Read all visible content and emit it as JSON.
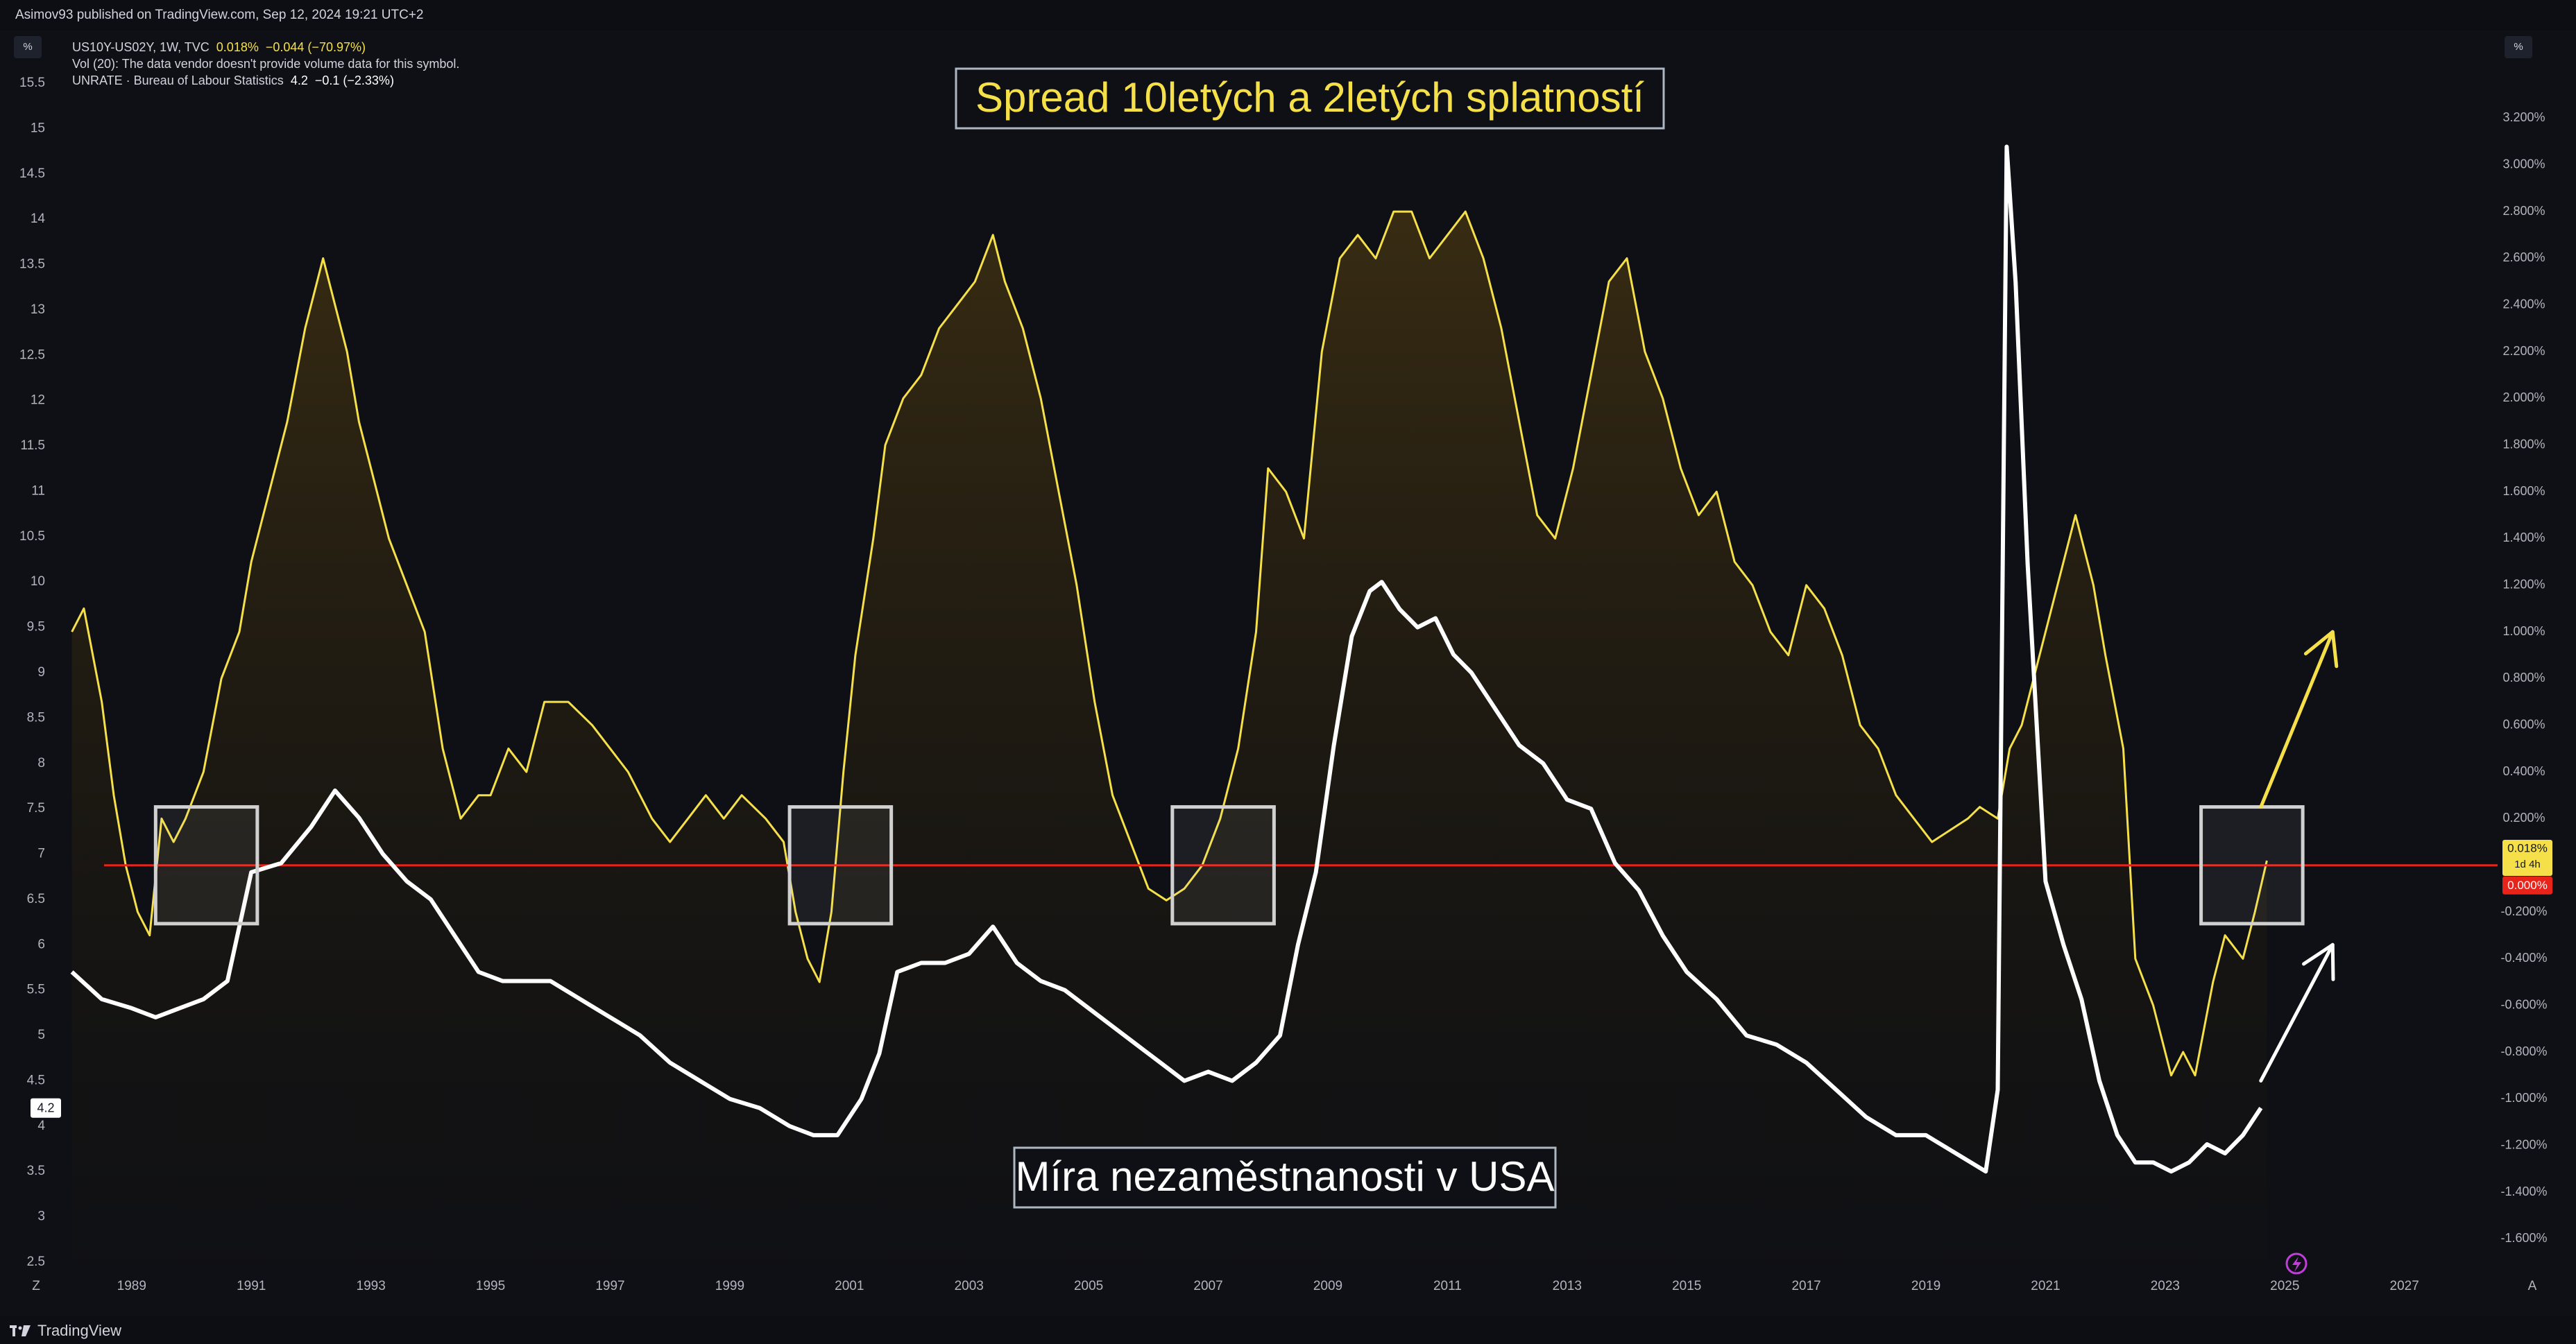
{
  "header": {
    "published": "Asimov93 published on TradingView.com, Sep 12, 2024 19:21 UTC+2",
    "left_unit": "%",
    "right_unit": "%"
  },
  "legend": {
    "line1_symbol": "US10Y-US02Y, 1W, TVC",
    "line1_value": "0.018%",
    "line1_change": "−0.044 (−70.97%)",
    "line2": "Vol (20): The data vendor doesn't provide volume data for this symbol.",
    "line3_symbol": "UNRATE · Bureau of Labour Statistics",
    "line3_value": "4.2",
    "line3_change": "−0.1 (−2.33%)"
  },
  "brand": {
    "name": "TradingView"
  },
  "annotations": {
    "spread_title": "Spread 10letých a 2letých splatností",
    "unrate_title": "Míra nezaměstnanosti v USA"
  },
  "price_labels": {
    "spread_last": "0.018%",
    "spread_timer": "1d 4h",
    "zero_line": "0.000%",
    "unrate_last": "4.2"
  },
  "axis_corner_left": "Z",
  "axis_corner_right": "A",
  "colors": {
    "spread": "#f5e04a",
    "unrate": "#ffffff",
    "zero_line": "#e8231a",
    "box": "#d0d0d0",
    "background": "#0e1016"
  },
  "chart_data": {
    "type": "line",
    "left_axis": {
      "label": "%",
      "range": [
        2.5,
        15.5
      ],
      "ticks": [
        "2.5",
        "3",
        "3.5",
        "4",
        "4.5",
        "5",
        "5.5",
        "6",
        "6.5",
        "7",
        "7.5",
        "8",
        "8.5",
        "9",
        "9.5",
        "10",
        "10.5",
        "11",
        "11.5",
        "12",
        "12.5",
        "13",
        "13.5",
        "14",
        "14.5",
        "15",
        "15.5"
      ]
    },
    "right_axis": {
      "label": "%",
      "range": [
        -1.7,
        3.35
      ],
      "ticks": [
        "-1.600%",
        "-1.400%",
        "-1.200%",
        "-1.000%",
        "-0.800%",
        "-0.600%",
        "-0.400%",
        "-0.200%",
        "0.000%",
        "0.200%",
        "0.400%",
        "0.600%",
        "0.800%",
        "1.000%",
        "1.200%",
        "1.400%",
        "1.600%",
        "1.800%",
        "2.000%",
        "2.200%",
        "2.400%",
        "2.600%",
        "2.800%",
        "3.000%",
        "3.200%"
      ]
    },
    "x_axis": {
      "range": [
        1987.9,
        2028.5
      ],
      "ticks": [
        "1989",
        "1991",
        "1993",
        "1995",
        "1997",
        "1999",
        "2001",
        "2003",
        "2005",
        "2007",
        "2009",
        "2011",
        "2013",
        "2015",
        "2017",
        "2019",
        "2021",
        "2023",
        "2025",
        "2027"
      ]
    },
    "grid": false,
    "series": [
      {
        "name": "US10Y-US02Y",
        "axis": "right",
        "style": "line-with-area",
        "x": [
          1988.0,
          1988.2,
          1988.5,
          1988.7,
          1988.9,
          1989.1,
          1989.3,
          1989.5,
          1989.7,
          1989.9,
          1990.2,
          1990.5,
          1990.8,
          1991.0,
          1991.3,
          1991.6,
          1991.9,
          1992.2,
          1992.4,
          1992.6,
          1992.8,
          1993.0,
          1993.3,
          1993.6,
          1993.9,
          1994.2,
          1994.5,
          1994.8,
          1995.0,
          1995.3,
          1995.6,
          1995.9,
          1996.3,
          1996.7,
          1997.0,
          1997.3,
          1997.7,
          1998.0,
          1998.3,
          1998.6,
          1998.9,
          1999.2,
          1999.6,
          1999.9,
          2000.1,
          2000.3,
          2000.5,
          2000.7,
          2000.9,
          2001.1,
          2001.4,
          2001.6,
          2001.9,
          2002.2,
          2002.5,
          2002.8,
          2003.1,
          2003.4,
          2003.6,
          2003.9,
          2004.2,
          2004.5,
          2004.8,
          2005.1,
          2005.4,
          2005.7,
          2006.0,
          2006.3,
          2006.6,
          2006.9,
          2007.2,
          2007.5,
          2007.8,
          2008.0,
          2008.3,
          2008.6,
          2008.9,
          2009.2,
          2009.5,
          2009.8,
          2010.1,
          2010.4,
          2010.7,
          2011.0,
          2011.3,
          2011.6,
          2011.9,
          2012.2,
          2012.5,
          2012.8,
          2013.1,
          2013.4,
          2013.7,
          2014.0,
          2014.3,
          2014.6,
          2014.9,
          2015.2,
          2015.5,
          2015.8,
          2016.1,
          2016.4,
          2016.7,
          2017.0,
          2017.3,
          2017.6,
          2017.9,
          2018.2,
          2018.5,
          2018.8,
          2019.1,
          2019.4,
          2019.7,
          2019.9,
          2020.2,
          2020.4,
          2020.6,
          2020.9,
          2021.2,
          2021.5,
          2021.8,
          2022.0,
          2022.3,
          2022.5,
          2022.8,
          2023.1,
          2023.3,
          2023.5,
          2023.8,
          2024.0,
          2024.3,
          2024.5,
          2024.7
        ],
        "y": [
          1.0,
          1.1,
          0.7,
          0.3,
          0.0,
          -0.2,
          -0.3,
          0.2,
          0.1,
          0.2,
          0.4,
          0.8,
          1.0,
          1.3,
          1.6,
          1.9,
          2.3,
          2.6,
          2.4,
          2.2,
          1.9,
          1.7,
          1.4,
          1.2,
          1.0,
          0.5,
          0.2,
          0.3,
          0.3,
          0.5,
          0.4,
          0.7,
          0.7,
          0.6,
          0.5,
          0.4,
          0.2,
          0.1,
          0.2,
          0.3,
          0.2,
          0.3,
          0.2,
          0.1,
          -0.2,
          -0.4,
          -0.5,
          -0.2,
          0.4,
          0.9,
          1.4,
          1.8,
          2.0,
          2.1,
          2.3,
          2.4,
          2.5,
          2.7,
          2.5,
          2.3,
          2.0,
          1.6,
          1.2,
          0.7,
          0.3,
          0.1,
          -0.1,
          -0.15,
          -0.1,
          0.0,
          0.2,
          0.5,
          1.0,
          1.7,
          1.6,
          1.4,
          2.2,
          2.6,
          2.7,
          2.6,
          2.8,
          2.8,
          2.6,
          2.7,
          2.8,
          2.6,
          2.3,
          1.9,
          1.5,
          1.4,
          1.7,
          2.1,
          2.5,
          2.6,
          2.2,
          2.0,
          1.7,
          1.5,
          1.6,
          1.3,
          1.2,
          1.0,
          0.9,
          1.2,
          1.1,
          0.9,
          0.6,
          0.5,
          0.3,
          0.2,
          0.1,
          0.15,
          0.2,
          0.25,
          0.2,
          0.5,
          0.6,
          0.9,
          1.2,
          1.5,
          1.2,
          0.9,
          0.5,
          -0.4,
          -0.6,
          -0.9,
          -0.8,
          -0.9,
          -0.5,
          -0.3,
          -0.4,
          -0.2,
          0.02
        ]
      },
      {
        "name": "UNRATE",
        "axis": "left",
        "style": "line",
        "x": [
          1988.0,
          1988.5,
          1989.0,
          1989.4,
          1989.8,
          1990.2,
          1990.6,
          1991.0,
          1991.5,
          1992.0,
          1992.4,
          1992.8,
          1993.2,
          1993.6,
          1994.0,
          1994.4,
          1994.8,
          1995.2,
          1995.6,
          1996.0,
          1996.5,
          1997.0,
          1997.5,
          1998.0,
          1998.5,
          1999.0,
          1999.5,
          2000.0,
          2000.4,
          2000.8,
          2001.2,
          2001.5,
          2001.8,
          2002.2,
          2002.6,
          2003.0,
          2003.4,
          2003.8,
          2004.2,
          2004.6,
          2005.0,
          2005.4,
          2005.8,
          2006.2,
          2006.6,
          2007.0,
          2007.4,
          2007.8,
          2008.2,
          2008.5,
          2008.8,
          2009.1,
          2009.4,
          2009.7,
          2009.9,
          2010.2,
          2010.5,
          2010.8,
          2011.1,
          2011.4,
          2011.8,
          2012.2,
          2012.6,
          2013.0,
          2013.4,
          2013.8,
          2014.2,
          2014.6,
          2015.0,
          2015.5,
          2016.0,
          2016.5,
          2017.0,
          2017.5,
          2018.0,
          2018.5,
          2019.0,
          2019.5,
          2020.0,
          2020.2,
          2020.35,
          2020.5,
          2020.7,
          2021.0,
          2021.3,
          2021.6,
          2021.9,
          2022.2,
          2022.5,
          2022.8,
          2023.1,
          2023.4,
          2023.7,
          2024.0,
          2024.3,
          2024.6
        ],
        "y": [
          5.7,
          5.4,
          5.3,
          5.2,
          5.3,
          5.4,
          5.6,
          6.8,
          6.9,
          7.3,
          7.7,
          7.4,
          7.0,
          6.7,
          6.5,
          6.1,
          5.7,
          5.6,
          5.6,
          5.6,
          5.4,
          5.2,
          5.0,
          4.7,
          4.5,
          4.3,
          4.2,
          4.0,
          3.9,
          3.9,
          4.3,
          4.8,
          5.7,
          5.8,
          5.8,
          5.9,
          6.2,
          5.8,
          5.6,
          5.5,
          5.3,
          5.1,
          4.9,
          4.7,
          4.5,
          4.6,
          4.5,
          4.7,
          5.0,
          6.0,
          6.8,
          8.2,
          9.4,
          9.9,
          10.0,
          9.7,
          9.5,
          9.6,
          9.2,
          9.0,
          8.6,
          8.2,
          8.0,
          7.6,
          7.5,
          6.9,
          6.6,
          6.1,
          5.7,
          5.4,
          5.0,
          4.9,
          4.7,
          4.4,
          4.1,
          3.9,
          3.9,
          3.7,
          3.5,
          4.4,
          14.8,
          13.3,
          10.2,
          6.7,
          6.0,
          5.4,
          4.5,
          3.9,
          3.6,
          3.6,
          3.5,
          3.6,
          3.8,
          3.7,
          3.9,
          4.2
        ]
      }
    ],
    "highlight_boxes": [
      {
        "x_range": [
          1989.4,
          1991.1
        ],
        "y_range_right": [
          -0.25,
          0.25
        ]
      },
      {
        "x_range": [
          2000.0,
          2001.7
        ],
        "y_range_right": [
          -0.25,
          0.25
        ]
      },
      {
        "x_range": [
          2006.4,
          2008.1
        ],
        "y_range_right": [
          -0.25,
          0.25
        ]
      },
      {
        "x_range": [
          2023.6,
          2025.3
        ],
        "y_range_right": [
          -0.25,
          0.25
        ]
      }
    ],
    "arrows": [
      {
        "color": "yellow",
        "from": [
          2024.6,
          0.25
        ],
        "to": [
          2025.8,
          1.0
        ],
        "axis": "right"
      },
      {
        "color": "white",
        "from": [
          2024.6,
          4.5
        ],
        "to": [
          2025.8,
          6.0
        ],
        "axis": "left"
      }
    ],
    "reference_line": {
      "axis": "right",
      "value": 0.0
    }
  }
}
